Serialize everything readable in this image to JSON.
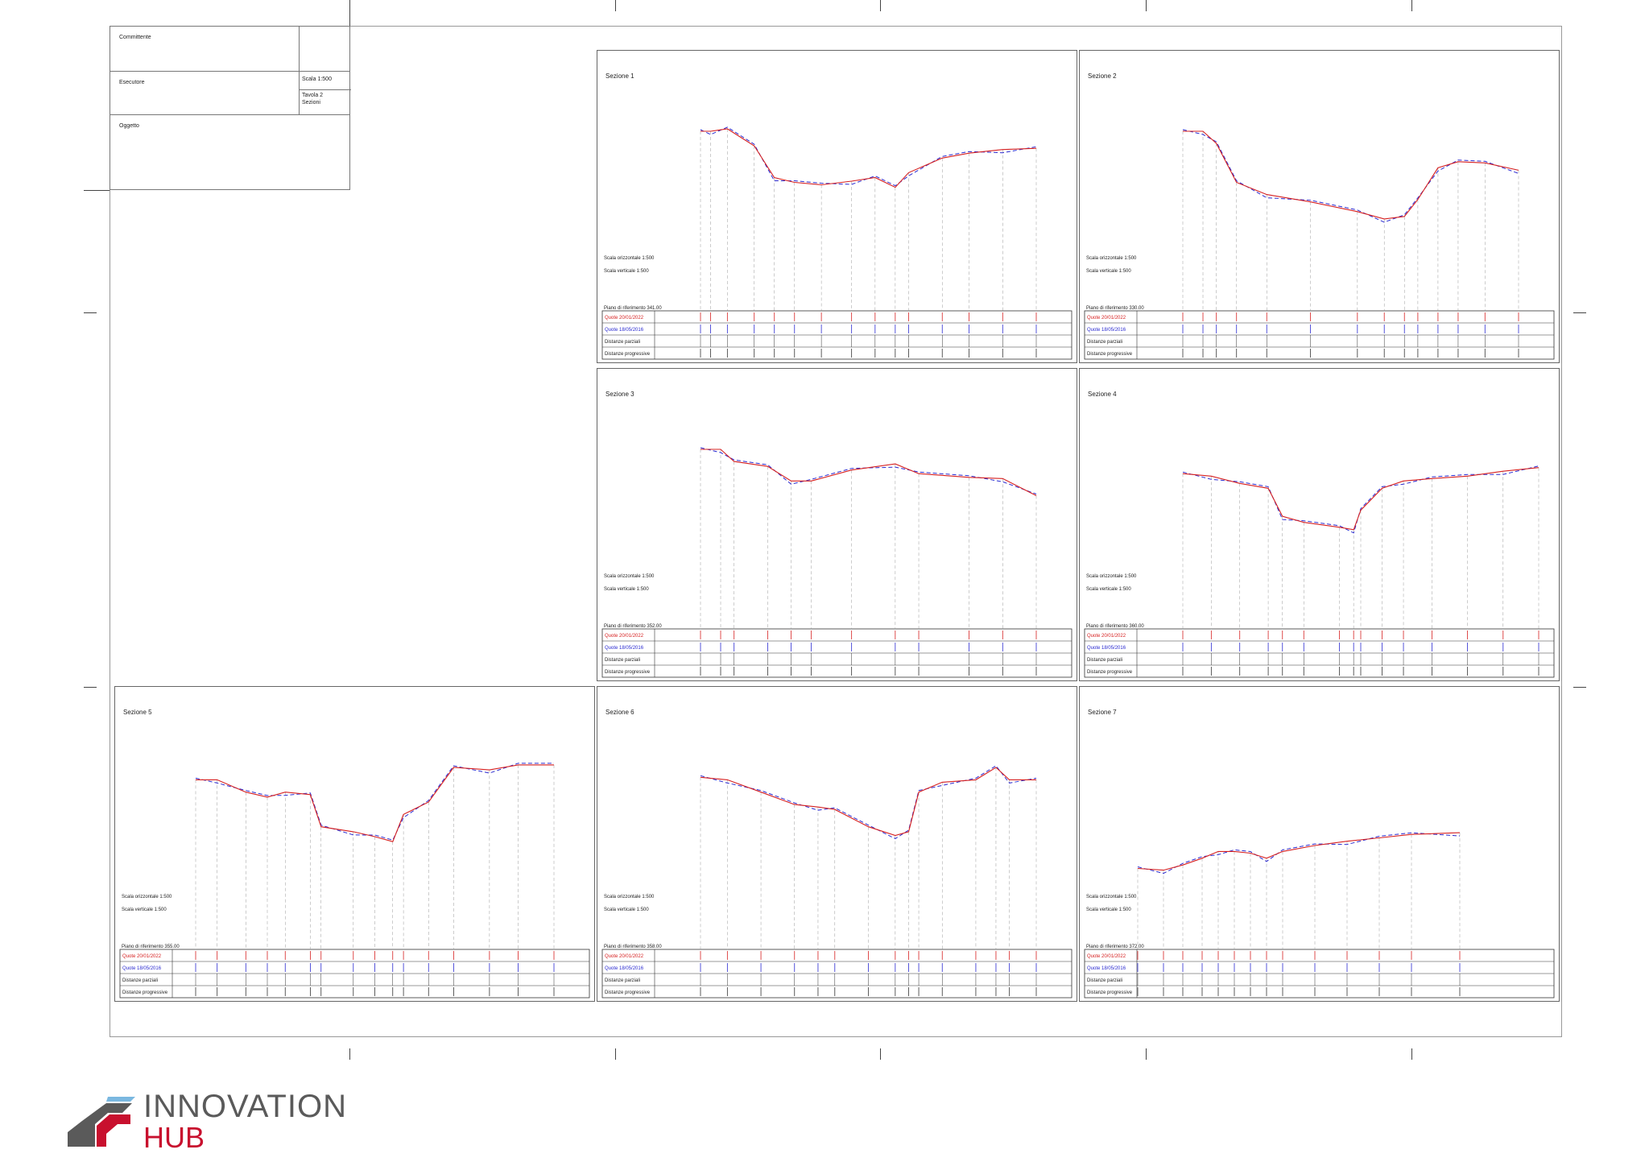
{
  "title_block": {
    "committente_label": "Committente",
    "esecutore_label": "Esecutore",
    "scala": "Scala 1:500",
    "tavola": "Tavola 2",
    "tavola_sub": "Sezioni",
    "oggetto_label": "Oggetto"
  },
  "row_labels": {
    "quote_new": "Quote 20/01/2022",
    "quote_old": "Quote 18/05/2016",
    "distanze_parziali": "Distanze parziali",
    "distanze_progressive": "Distanze progressive",
    "scala_orizzontale": "Scala orizzontale 1:500",
    "scala_verticale": "Scala verticale 1:500"
  },
  "colors": {
    "new_profile": "#d62020",
    "old_profile": "#2a2ad0",
    "grid": "#999999"
  },
  "sections": [
    {
      "title": "Sezione 1",
      "piano": "Piano di riferimento   341.00"
    },
    {
      "title": "Sezione 2",
      "piano": "Piano di riferimento   330.00"
    },
    {
      "title": "Sezione 3",
      "piano": "Piano di riferimento   352.00"
    },
    {
      "title": "Sezione 4",
      "piano": "Piano di riferimento   360.00"
    },
    {
      "title": "Sezione 5",
      "piano": "Piano di riferimento   355.00"
    },
    {
      "title": "Sezione 6",
      "piano": "Piano di riferimento   358.00"
    },
    {
      "title": "Sezione 7",
      "piano": "Piano di riferimento   372.00"
    }
  ],
  "logo": {
    "line1": "INNOVATION",
    "line2": "HUB"
  }
}
